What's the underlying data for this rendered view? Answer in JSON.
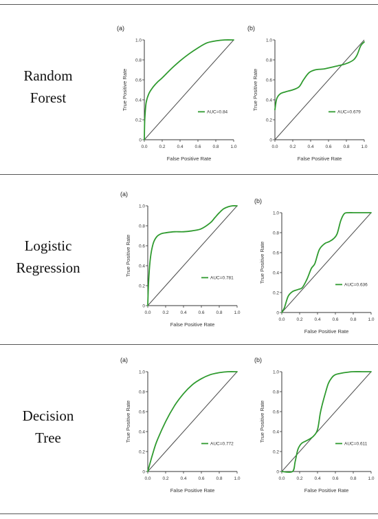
{
  "colors": {
    "roc_curve": "#2e9a2e",
    "diagonal": "#555555",
    "axis": "#333333"
  },
  "rows": [
    {
      "model_line1": "Random",
      "model_line2": "Forest"
    },
    {
      "model_line1": "Logistic",
      "model_line2": "Regression"
    },
    {
      "model_line1": "Decision",
      "model_line2": "Tree"
    }
  ],
  "chart_data": [
    {
      "type": "line",
      "panel": "(a)",
      "model": "Random Forest",
      "xlabel": "False Positive Rate",
      "ylabel": "True Positive Rate",
      "xlim": [
        0,
        1
      ],
      "ylim": [
        0,
        1
      ],
      "grid": false,
      "legend_position": "right",
      "xticks": [
        "0.0",
        "0.2",
        "0.4",
        "0.6",
        "0.8",
        "1.0"
      ],
      "yticks": [
        "0",
        "0.2",
        "0.4",
        "0.6",
        "0.8",
        "1.0"
      ],
      "legend": "AUC=0.84",
      "series": [
        {
          "x": [
            0,
            0.005,
            0.02,
            0.05,
            0.1,
            0.15,
            0.2,
            0.3,
            0.4,
            0.5,
            0.6,
            0.7,
            0.8,
            0.9,
            1.0
          ],
          "y": [
            0,
            0.2,
            0.37,
            0.46,
            0.53,
            0.58,
            0.62,
            0.71,
            0.79,
            0.86,
            0.92,
            0.97,
            0.99,
            1.0,
            1.0
          ]
        }
      ]
    },
    {
      "type": "line",
      "panel": "(b)",
      "model": "Random Forest",
      "xlabel": "False Positive Rate",
      "ylabel": "True Positive Rate",
      "xlim": [
        0,
        1
      ],
      "ylim": [
        0,
        1
      ],
      "grid": false,
      "legend_position": "right",
      "xticks": [
        "0.0",
        "0.2",
        "0.4",
        "0.6",
        "0.8",
        "1.0"
      ],
      "yticks": [
        "0",
        "0.2",
        "0.4",
        "0.6",
        "0.8",
        "1.0"
      ],
      "legend": "AUC=0.679",
      "series": [
        {
          "x": [
            0,
            0.02,
            0.06,
            0.12,
            0.2,
            0.27,
            0.32,
            0.38,
            0.45,
            0.55,
            0.65,
            0.75,
            0.82,
            0.88,
            0.92,
            0.96,
            1.0
          ],
          "y": [
            0.3,
            0.41,
            0.46,
            0.48,
            0.5,
            0.53,
            0.6,
            0.67,
            0.7,
            0.71,
            0.73,
            0.75,
            0.77,
            0.8,
            0.85,
            0.94,
            0.98
          ]
        }
      ]
    },
    {
      "type": "line",
      "panel": "(a)",
      "model": "Logistic Regression",
      "xlabel": "False Positive Rate",
      "ylabel": "True Positive Rate",
      "xlim": [
        0,
        1
      ],
      "ylim": [
        0,
        1
      ],
      "grid": false,
      "legend_position": "right",
      "xticks": [
        "0.0",
        "0.2",
        "0.4",
        "0.6",
        "0.8",
        "1.0"
      ],
      "yticks": [
        "0",
        "0.2",
        "0.4",
        "0.6",
        "0.8",
        "1.0"
      ],
      "legend": "AUC=0.781",
      "series": [
        {
          "x": [
            0,
            0.01,
            0.03,
            0.06,
            0.1,
            0.15,
            0.2,
            0.3,
            0.4,
            0.5,
            0.6,
            0.7,
            0.75,
            0.8,
            0.85,
            0.9,
            0.95,
            1.0
          ],
          "y": [
            0,
            0.25,
            0.48,
            0.62,
            0.69,
            0.72,
            0.73,
            0.74,
            0.74,
            0.75,
            0.77,
            0.83,
            0.88,
            0.93,
            0.97,
            0.99,
            1.0,
            1.0
          ]
        }
      ]
    },
    {
      "type": "line",
      "panel": "(b)",
      "model": "Logistic Regression",
      "xlabel": "False Positive Rate",
      "ylabel": "True Positive Rate",
      "xlim": [
        0,
        1
      ],
      "ylim": [
        0,
        1
      ],
      "grid": false,
      "legend_position": "right",
      "xticks": [
        "0.0",
        "0.2",
        "0.4",
        "0.6",
        "0.8",
        "1.0"
      ],
      "yticks": [
        "0",
        "0.2",
        "0.4",
        "0.6",
        "0.8",
        "1.0"
      ],
      "legend": "AUC=0.636",
      "series": [
        {
          "x": [
            0,
            0.03,
            0.07,
            0.12,
            0.18,
            0.23,
            0.28,
            0.33,
            0.37,
            0.42,
            0.48,
            0.53,
            0.58,
            0.62,
            0.66,
            0.7,
            0.75,
            0.8,
            0.9,
            1.0
          ],
          "y": [
            0,
            0.05,
            0.16,
            0.21,
            0.23,
            0.25,
            0.33,
            0.44,
            0.49,
            0.63,
            0.69,
            0.71,
            0.74,
            0.79,
            0.92,
            0.99,
            1.0,
            1.0,
            1.0,
            1.0
          ]
        }
      ]
    },
    {
      "type": "line",
      "panel": "(a)",
      "model": "Decision Tree",
      "xlabel": "False Positive Rate",
      "ylabel": "True Positive Rate",
      "xlim": [
        0,
        1
      ],
      "ylim": [
        0,
        1
      ],
      "grid": false,
      "legend_position": "right",
      "xticks": [
        "0.0",
        "0.2",
        "0.4",
        "0.6",
        "0.8",
        "1.0"
      ],
      "yticks": [
        "0",
        "0.2",
        "0.4",
        "0.6",
        "0.8",
        "1.0"
      ],
      "legend": "AUC=0.772",
      "series": [
        {
          "x": [
            0,
            0.05,
            0.1,
            0.2,
            0.3,
            0.4,
            0.5,
            0.6,
            0.7,
            0.8,
            0.9,
            1.0
          ],
          "y": [
            0,
            0.16,
            0.3,
            0.5,
            0.66,
            0.78,
            0.87,
            0.93,
            0.97,
            0.99,
            1.0,
            1.0
          ]
        }
      ]
    },
    {
      "type": "line",
      "panel": "(b)",
      "model": "Decision Tree",
      "xlabel": "False Positive Rate",
      "ylabel": "True Positive Rate",
      "xlim": [
        0,
        1
      ],
      "ylim": [
        0,
        1
      ],
      "grid": false,
      "legend_position": "right",
      "xticks": [
        "0.0",
        "0.2",
        "0.4",
        "0.6",
        "0.8",
        "1.0"
      ],
      "yticks": [
        "0",
        "0.2",
        "0.4",
        "0.6",
        "0.8",
        "1.0"
      ],
      "legend": "AUC=0.611",
      "series": [
        {
          "x": [
            0,
            0.12,
            0.15,
            0.18,
            0.22,
            0.28,
            0.35,
            0.4,
            0.43,
            0.45,
            0.48,
            0.52,
            0.56,
            0.6,
            0.7,
            0.8,
            0.9,
            1.0
          ],
          "y": [
            0,
            0.0,
            0.1,
            0.22,
            0.28,
            0.31,
            0.35,
            0.42,
            0.58,
            0.66,
            0.76,
            0.88,
            0.94,
            0.97,
            0.99,
            1.0,
            1.0,
            1.0
          ]
        }
      ]
    }
  ]
}
